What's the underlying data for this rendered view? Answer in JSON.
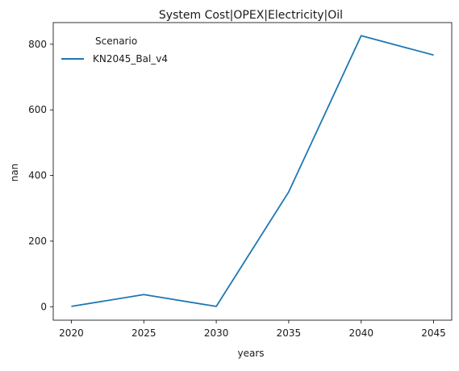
{
  "chart_data": {
    "type": "line",
    "title": "System Cost|OPEX|Electricity|Oil",
    "xlabel": "years",
    "ylabel": "nan",
    "x": [
      2020,
      2025,
      2030,
      2035,
      2040,
      2045
    ],
    "xticks": [
      2020,
      2025,
      2030,
      2035,
      2040,
      2045
    ],
    "xlim": [
      2018.75,
      2046.25
    ],
    "yticks": [
      0,
      200,
      400,
      600,
      800
    ],
    "ylim": [
      -41,
      866
    ],
    "grid": false,
    "legend": {
      "title": "Scenario",
      "placement": "top-left"
    },
    "series": [
      {
        "name": "KN2045_Bal_v4",
        "color": "#1f77b4",
        "values": [
          1,
          37,
          1,
          350,
          826,
          767
        ]
      }
    ]
  }
}
